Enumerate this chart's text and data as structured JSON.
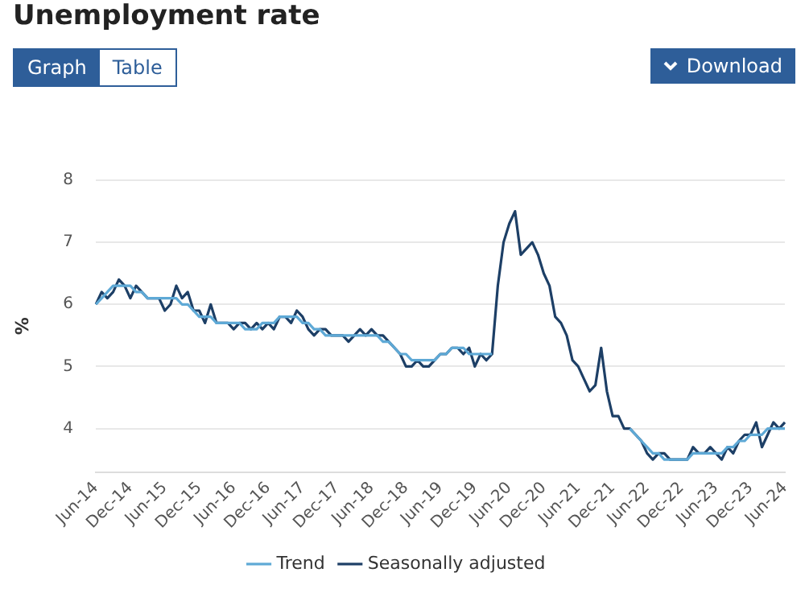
{
  "chart_data": {
    "type": "line",
    "title": "Unemployment rate",
    "ylabel": "%",
    "categories": [
      "Jun-14",
      null,
      null,
      null,
      null,
      null,
      "Dec-14",
      null,
      null,
      null,
      null,
      null,
      "Jun-15",
      null,
      null,
      null,
      null,
      null,
      "Dec-15",
      null,
      null,
      null,
      null,
      null,
      "Jun-16",
      null,
      null,
      null,
      null,
      null,
      "Dec-16",
      null,
      null,
      null,
      null,
      null,
      "Jun-17",
      null,
      null,
      null,
      null,
      null,
      "Dec-17",
      null,
      null,
      null,
      null,
      null,
      "Jun-18",
      null,
      null,
      null,
      null,
      null,
      "Dec-18",
      null,
      null,
      null,
      null,
      null,
      "Jun-19",
      null,
      null,
      null,
      null,
      null,
      "Dec-19",
      null,
      null,
      null,
      null,
      null,
      "Jun-20",
      null,
      null,
      null,
      null,
      null,
      "Dec-20",
      null,
      null,
      null,
      null,
      null,
      "Jun-21",
      null,
      null,
      null,
      null,
      null,
      "Dec-21",
      null,
      null,
      null,
      null,
      null,
      "Jun-22",
      null,
      null,
      null,
      null,
      null,
      "Dec-22",
      null,
      null,
      null,
      null,
      null,
      "Jun-23",
      null,
      null,
      null,
      null,
      null,
      "Dec-23",
      null,
      null,
      null,
      null,
      null,
      "Jun-24"
    ],
    "series": [
      {
        "name": "Trend",
        "color": "#5ea9d6",
        "values": [
          6.0,
          6.1,
          6.2,
          6.3,
          6.3,
          6.3,
          6.3,
          6.2,
          6.2,
          6.1,
          6.1,
          6.1,
          6.1,
          6.1,
          6.1,
          6.0,
          6.0,
          5.9,
          5.8,
          5.8,
          5.8,
          5.7,
          5.7,
          5.7,
          5.7,
          5.7,
          5.6,
          5.6,
          5.6,
          5.7,
          5.7,
          5.7,
          5.8,
          5.8,
          5.8,
          5.8,
          5.7,
          5.7,
          5.6,
          5.6,
          5.5,
          5.5,
          5.5,
          5.5,
          5.5,
          5.5,
          5.5,
          5.5,
          5.5,
          5.5,
          5.4,
          5.4,
          5.3,
          5.2,
          5.2,
          5.1,
          5.1,
          5.1,
          5.1,
          5.1,
          5.2,
          5.2,
          5.3,
          5.3,
          5.3,
          5.2,
          5.2,
          5.2,
          5.2,
          5.2,
          null,
          null,
          null,
          null,
          null,
          null,
          null,
          null,
          null,
          null,
          null,
          null,
          null,
          null,
          null,
          null,
          null,
          null,
          null,
          null,
          null,
          null,
          null,
          4.0,
          3.9,
          3.8,
          3.7,
          3.6,
          3.6,
          3.5,
          3.5,
          3.5,
          3.5,
          3.5,
          3.6,
          3.6,
          3.6,
          3.6,
          3.6,
          3.6,
          3.7,
          3.7,
          3.8,
          3.8,
          3.9,
          3.9,
          3.9,
          4.0,
          4.0,
          4.0,
          4.0
        ]
      },
      {
        "name": "Seasonally adjusted",
        "color": "#1d3f66",
        "values": [
          6.0,
          6.2,
          6.1,
          6.2,
          6.4,
          6.3,
          6.1,
          6.3,
          6.2,
          6.1,
          6.1,
          6.1,
          5.9,
          6.0,
          6.3,
          6.1,
          6.2,
          5.9,
          5.9,
          5.7,
          6.0,
          5.7,
          5.7,
          5.7,
          5.6,
          5.7,
          5.7,
          5.6,
          5.7,
          5.6,
          5.7,
          5.6,
          5.8,
          5.8,
          5.7,
          5.9,
          5.8,
          5.6,
          5.5,
          5.6,
          5.6,
          5.5,
          5.5,
          5.5,
          5.4,
          5.5,
          5.6,
          5.5,
          5.6,
          5.5,
          5.5,
          5.4,
          5.3,
          5.2,
          5.0,
          5.0,
          5.1,
          5.0,
          5.0,
          5.1,
          5.2,
          5.2,
          5.3,
          5.3,
          5.2,
          5.3,
          5.0,
          5.2,
          5.1,
          5.2,
          6.3,
          7.0,
          7.3,
          7.5,
          6.8,
          6.9,
          7.0,
          6.8,
          6.5,
          6.3,
          5.8,
          5.7,
          5.5,
          5.1,
          5.0,
          4.8,
          4.6,
          4.7,
          5.3,
          4.6,
          4.2,
          4.2,
          4.0,
          4.0,
          3.9,
          3.8,
          3.6,
          3.5,
          3.6,
          3.6,
          3.5,
          3.5,
          3.5,
          3.5,
          3.7,
          3.6,
          3.6,
          3.7,
          3.6,
          3.5,
          3.7,
          3.6,
          3.8,
          3.9,
          3.9,
          4.1,
          3.7,
          3.9,
          4.1,
          4.0,
          4.1
        ]
      }
    ],
    "annotations": [
      "Graph",
      "Table",
      "Download"
    ],
    "ylim": [
      3.3,
      8
    ],
    "yticks": [
      4,
      5,
      6,
      7,
      8
    ],
    "grid": "y",
    "legend": "bottom",
    "marker": "none",
    "line_style": "solid"
  }
}
